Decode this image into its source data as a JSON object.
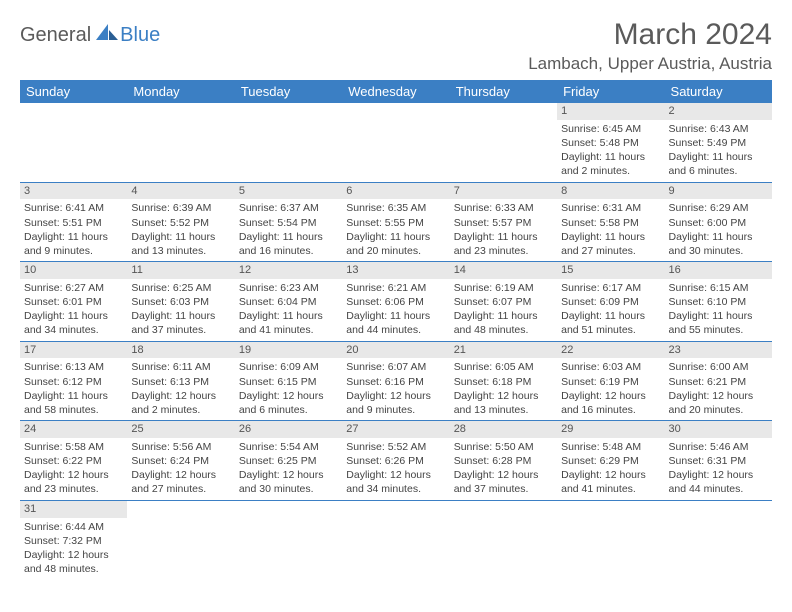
{
  "brand": {
    "part1": "General",
    "part2": "Blue",
    "accent": "#3b7fc4",
    "gray": "#5a5a5a"
  },
  "title": "March 2024",
  "location": "Lambach, Upper Austria, Austria",
  "dayHeaders": [
    "Sunday",
    "Monday",
    "Tuesday",
    "Wednesday",
    "Thursday",
    "Friday",
    "Saturday"
  ],
  "colors": {
    "headerBg": "#3b7fc4",
    "headerFg": "#ffffff",
    "dayBg": "#e8e8e8",
    "text": "#444444",
    "rule": "#3b7fc4"
  },
  "weeks": [
    {
      "nums": [
        "",
        "",
        "",
        "",
        "",
        "1",
        "2"
      ],
      "cells": [
        [],
        [],
        [],
        [],
        [],
        [
          "Sunrise: 6:45 AM",
          "Sunset: 5:48 PM",
          "Daylight: 11 hours",
          "and 2 minutes."
        ],
        [
          "Sunrise: 6:43 AM",
          "Sunset: 5:49 PM",
          "Daylight: 11 hours",
          "and 6 minutes."
        ]
      ]
    },
    {
      "nums": [
        "3",
        "4",
        "5",
        "6",
        "7",
        "8",
        "9"
      ],
      "cells": [
        [
          "Sunrise: 6:41 AM",
          "Sunset: 5:51 PM",
          "Daylight: 11 hours",
          "and 9 minutes."
        ],
        [
          "Sunrise: 6:39 AM",
          "Sunset: 5:52 PM",
          "Daylight: 11 hours",
          "and 13 minutes."
        ],
        [
          "Sunrise: 6:37 AM",
          "Sunset: 5:54 PM",
          "Daylight: 11 hours",
          "and 16 minutes."
        ],
        [
          "Sunrise: 6:35 AM",
          "Sunset: 5:55 PM",
          "Daylight: 11 hours",
          "and 20 minutes."
        ],
        [
          "Sunrise: 6:33 AM",
          "Sunset: 5:57 PM",
          "Daylight: 11 hours",
          "and 23 minutes."
        ],
        [
          "Sunrise: 6:31 AM",
          "Sunset: 5:58 PM",
          "Daylight: 11 hours",
          "and 27 minutes."
        ],
        [
          "Sunrise: 6:29 AM",
          "Sunset: 6:00 PM",
          "Daylight: 11 hours",
          "and 30 minutes."
        ]
      ]
    },
    {
      "nums": [
        "10",
        "11",
        "12",
        "13",
        "14",
        "15",
        "16"
      ],
      "cells": [
        [
          "Sunrise: 6:27 AM",
          "Sunset: 6:01 PM",
          "Daylight: 11 hours",
          "and 34 minutes."
        ],
        [
          "Sunrise: 6:25 AM",
          "Sunset: 6:03 PM",
          "Daylight: 11 hours",
          "and 37 minutes."
        ],
        [
          "Sunrise: 6:23 AM",
          "Sunset: 6:04 PM",
          "Daylight: 11 hours",
          "and 41 minutes."
        ],
        [
          "Sunrise: 6:21 AM",
          "Sunset: 6:06 PM",
          "Daylight: 11 hours",
          "and 44 minutes."
        ],
        [
          "Sunrise: 6:19 AM",
          "Sunset: 6:07 PM",
          "Daylight: 11 hours",
          "and 48 minutes."
        ],
        [
          "Sunrise: 6:17 AM",
          "Sunset: 6:09 PM",
          "Daylight: 11 hours",
          "and 51 minutes."
        ],
        [
          "Sunrise: 6:15 AM",
          "Sunset: 6:10 PM",
          "Daylight: 11 hours",
          "and 55 minutes."
        ]
      ]
    },
    {
      "nums": [
        "17",
        "18",
        "19",
        "20",
        "21",
        "22",
        "23"
      ],
      "cells": [
        [
          "Sunrise: 6:13 AM",
          "Sunset: 6:12 PM",
          "Daylight: 11 hours",
          "and 58 minutes."
        ],
        [
          "Sunrise: 6:11 AM",
          "Sunset: 6:13 PM",
          "Daylight: 12 hours",
          "and 2 minutes."
        ],
        [
          "Sunrise: 6:09 AM",
          "Sunset: 6:15 PM",
          "Daylight: 12 hours",
          "and 6 minutes."
        ],
        [
          "Sunrise: 6:07 AM",
          "Sunset: 6:16 PM",
          "Daylight: 12 hours",
          "and 9 minutes."
        ],
        [
          "Sunrise: 6:05 AM",
          "Sunset: 6:18 PM",
          "Daylight: 12 hours",
          "and 13 minutes."
        ],
        [
          "Sunrise: 6:03 AM",
          "Sunset: 6:19 PM",
          "Daylight: 12 hours",
          "and 16 minutes."
        ],
        [
          "Sunrise: 6:00 AM",
          "Sunset: 6:21 PM",
          "Daylight: 12 hours",
          "and 20 minutes."
        ]
      ]
    },
    {
      "nums": [
        "24",
        "25",
        "26",
        "27",
        "28",
        "29",
        "30"
      ],
      "cells": [
        [
          "Sunrise: 5:58 AM",
          "Sunset: 6:22 PM",
          "Daylight: 12 hours",
          "and 23 minutes."
        ],
        [
          "Sunrise: 5:56 AM",
          "Sunset: 6:24 PM",
          "Daylight: 12 hours",
          "and 27 minutes."
        ],
        [
          "Sunrise: 5:54 AM",
          "Sunset: 6:25 PM",
          "Daylight: 12 hours",
          "and 30 minutes."
        ],
        [
          "Sunrise: 5:52 AM",
          "Sunset: 6:26 PM",
          "Daylight: 12 hours",
          "and 34 minutes."
        ],
        [
          "Sunrise: 5:50 AM",
          "Sunset: 6:28 PM",
          "Daylight: 12 hours",
          "and 37 minutes."
        ],
        [
          "Sunrise: 5:48 AM",
          "Sunset: 6:29 PM",
          "Daylight: 12 hours",
          "and 41 minutes."
        ],
        [
          "Sunrise: 5:46 AM",
          "Sunset: 6:31 PM",
          "Daylight: 12 hours",
          "and 44 minutes."
        ]
      ]
    },
    {
      "nums": [
        "31",
        "",
        "",
        "",
        "",
        "",
        ""
      ],
      "cells": [
        [
          "Sunrise: 6:44 AM",
          "Sunset: 7:32 PM",
          "Daylight: 12 hours",
          "and 48 minutes."
        ],
        [],
        [],
        [],
        [],
        [],
        []
      ]
    }
  ]
}
